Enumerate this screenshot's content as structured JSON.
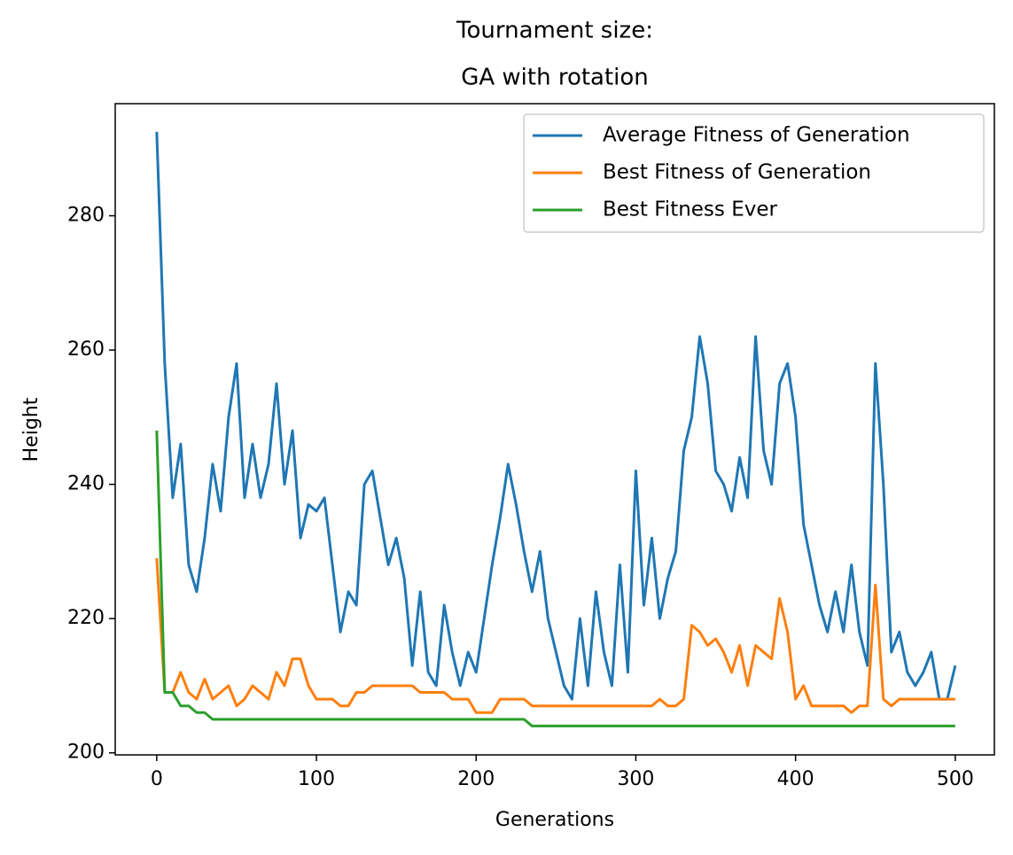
{
  "chart_data": {
    "type": "line",
    "title": "Tournament size:",
    "subtitle": "GA with rotation",
    "x_label": "Generations",
    "y_label": "Height",
    "x": [
      0,
      5,
      10,
      15,
      20,
      25,
      30,
      35,
      40,
      45,
      50,
      55,
      60,
      65,
      70,
      75,
      80,
      85,
      90,
      95,
      100,
      105,
      110,
      115,
      120,
      125,
      130,
      135,
      140,
      145,
      150,
      155,
      160,
      165,
      170,
      175,
      180,
      185,
      190,
      195,
      200,
      205,
      210,
      215,
      220,
      225,
      230,
      235,
      240,
      245,
      250,
      255,
      260,
      265,
      270,
      275,
      280,
      285,
      290,
      295,
      300,
      305,
      310,
      315,
      320,
      325,
      330,
      335,
      340,
      345,
      350,
      355,
      360,
      365,
      370,
      375,
      380,
      385,
      390,
      395,
      400,
      405,
      410,
      415,
      420,
      425,
      430,
      435,
      440,
      445,
      450,
      455,
      460,
      465,
      470,
      475,
      480,
      485,
      490,
      495,
      500
    ],
    "series": [
      {
        "name": "Average Fitness of Generation",
        "color": "#1f77b4",
        "values": [
          292.5,
          258,
          238,
          246,
          228,
          224,
          232,
          243,
          236,
          250,
          258,
          238,
          246,
          238,
          243,
          255,
          240,
          248,
          232,
          237,
          236,
          238,
          228,
          218,
          224,
          222,
          240,
          242,
          235,
          228,
          232,
          226,
          213,
          224,
          212,
          210,
          222,
          215,
          210,
          215,
          212,
          220,
          228,
          235,
          243,
          237,
          230,
          224,
          230,
          220,
          215,
          210,
          208,
          220,
          210,
          224,
          215,
          210,
          228,
          212,
          242,
          222,
          232,
          220,
          226,
          230,
          245,
          250,
          262,
          255,
          242,
          240,
          236,
          244,
          238,
          262,
          245,
          240,
          255,
          258,
          250,
          234,
          228,
          222,
          218,
          224,
          218,
          228,
          218,
          213,
          258,
          240,
          215,
          218,
          212,
          210,
          212,
          215,
          208,
          208,
          213
        ]
      },
      {
        "name": "Best Fitness of Generation",
        "color": "#ff7f0e",
        "values": [
          229,
          209,
          209,
          212,
          209,
          208,
          211,
          208,
          209,
          210,
          207,
          208,
          210,
          209,
          208,
          212,
          210,
          214,
          214,
          210,
          208,
          208,
          208,
          207,
          207,
          209,
          209,
          210,
          210,
          210,
          210,
          210,
          210,
          209,
          209,
          209,
          209,
          208,
          208,
          208,
          206,
          206,
          206,
          208,
          208,
          208,
          208,
          207,
          207,
          207,
          207,
          207,
          207,
          207,
          207,
          207,
          207,
          207,
          207,
          207,
          207,
          207,
          207,
          208,
          207,
          207,
          208,
          219,
          218,
          216,
          217,
          215,
          212,
          216,
          210,
          216,
          215,
          214,
          223,
          218,
          208,
          210,
          207,
          207,
          207,
          207,
          207,
          206,
          207,
          207,
          225,
          208,
          207,
          208,
          208,
          208,
          208,
          208,
          208,
          208,
          208
        ]
      },
      {
        "name": "Best Fitness Ever",
        "color": "#2ca02c",
        "values": [
          248,
          209,
          209,
          207,
          207,
          206,
          206,
          205,
          205,
          205,
          205,
          205,
          205,
          205,
          205,
          205,
          205,
          205,
          205,
          205,
          205,
          205,
          205,
          205,
          205,
          205,
          205,
          205,
          205,
          205,
          205,
          205,
          205,
          205,
          205,
          205,
          205,
          205,
          205,
          205,
          205,
          205,
          205,
          205,
          205,
          205,
          205,
          204,
          204,
          204,
          204,
          204,
          204,
          204,
          204,
          204,
          204,
          204,
          204,
          204,
          204,
          204,
          204,
          204,
          204,
          204,
          204,
          204,
          204,
          204,
          204,
          204,
          204,
          204,
          204,
          204,
          204,
          204,
          204,
          204,
          204,
          204,
          204,
          204,
          204,
          204,
          204,
          204,
          204,
          204,
          204,
          204,
          204,
          204,
          204,
          204,
          204,
          204,
          204,
          204,
          204
        ]
      }
    ],
    "xlim": [
      -26,
      524.5
    ],
    "ylim": [
      199.7,
      296.7
    ],
    "xticks": [
      0,
      100,
      200,
      300,
      400,
      500
    ],
    "yticks": [
      200,
      220,
      240,
      260,
      280
    ],
    "legend": "upper right",
    "grid": false
  }
}
